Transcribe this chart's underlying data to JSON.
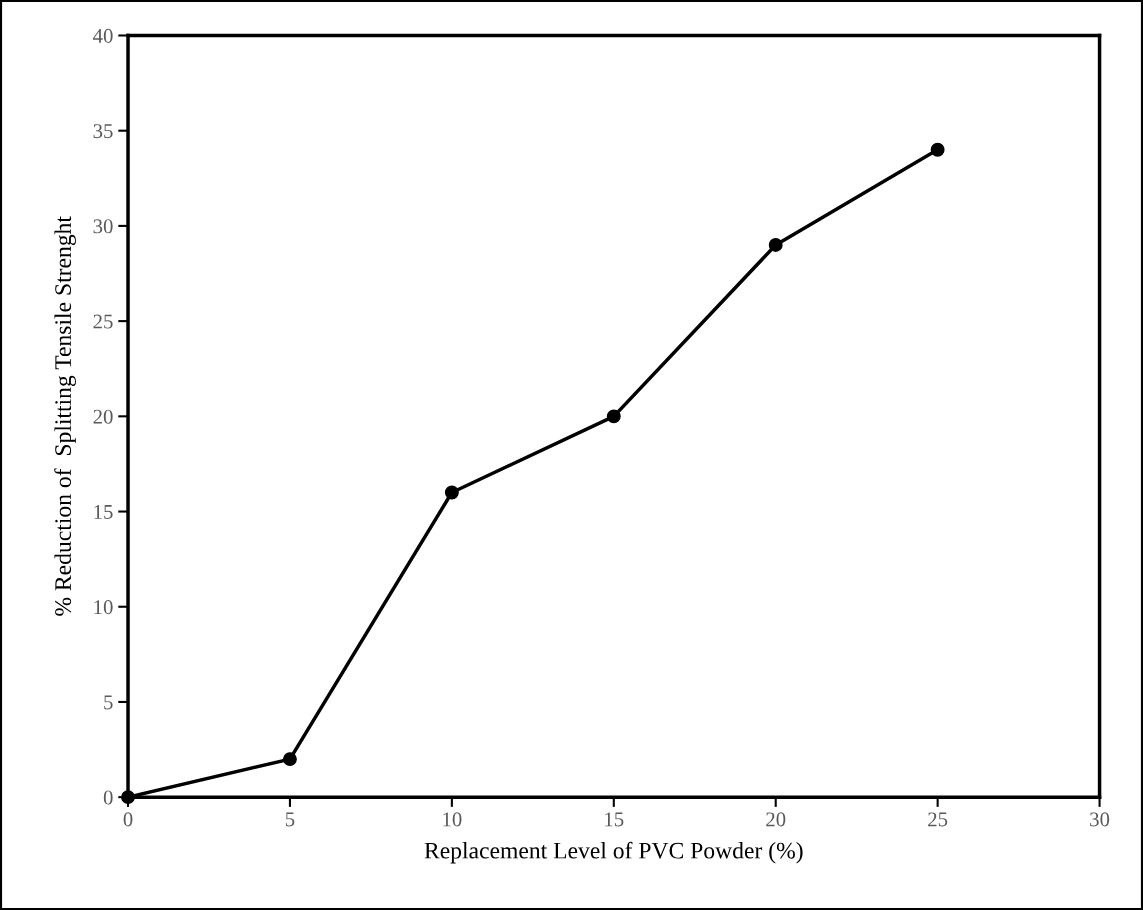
{
  "chart_data": {
    "type": "line",
    "xlabel": "Replacement Level of PVC Powder (%)",
    "ylabel": "% Reduction of  Splitting Tensile Strenght",
    "x": [
      0,
      5,
      10,
      15,
      20,
      25
    ],
    "series": [
      {
        "color": "#000000",
        "values": [
          0,
          2,
          16,
          20,
          29,
          34
        ]
      }
    ],
    "xlim": [
      0,
      30
    ],
    "xticks": [
      0,
      5,
      10,
      15,
      20,
      25,
      30
    ],
    "ylim": [
      0,
      40
    ],
    "yticks": [
      0,
      5,
      10,
      15,
      20,
      25,
      30,
      35,
      40
    ],
    "grid": false,
    "marker": "circle",
    "line_style": "solid"
  }
}
